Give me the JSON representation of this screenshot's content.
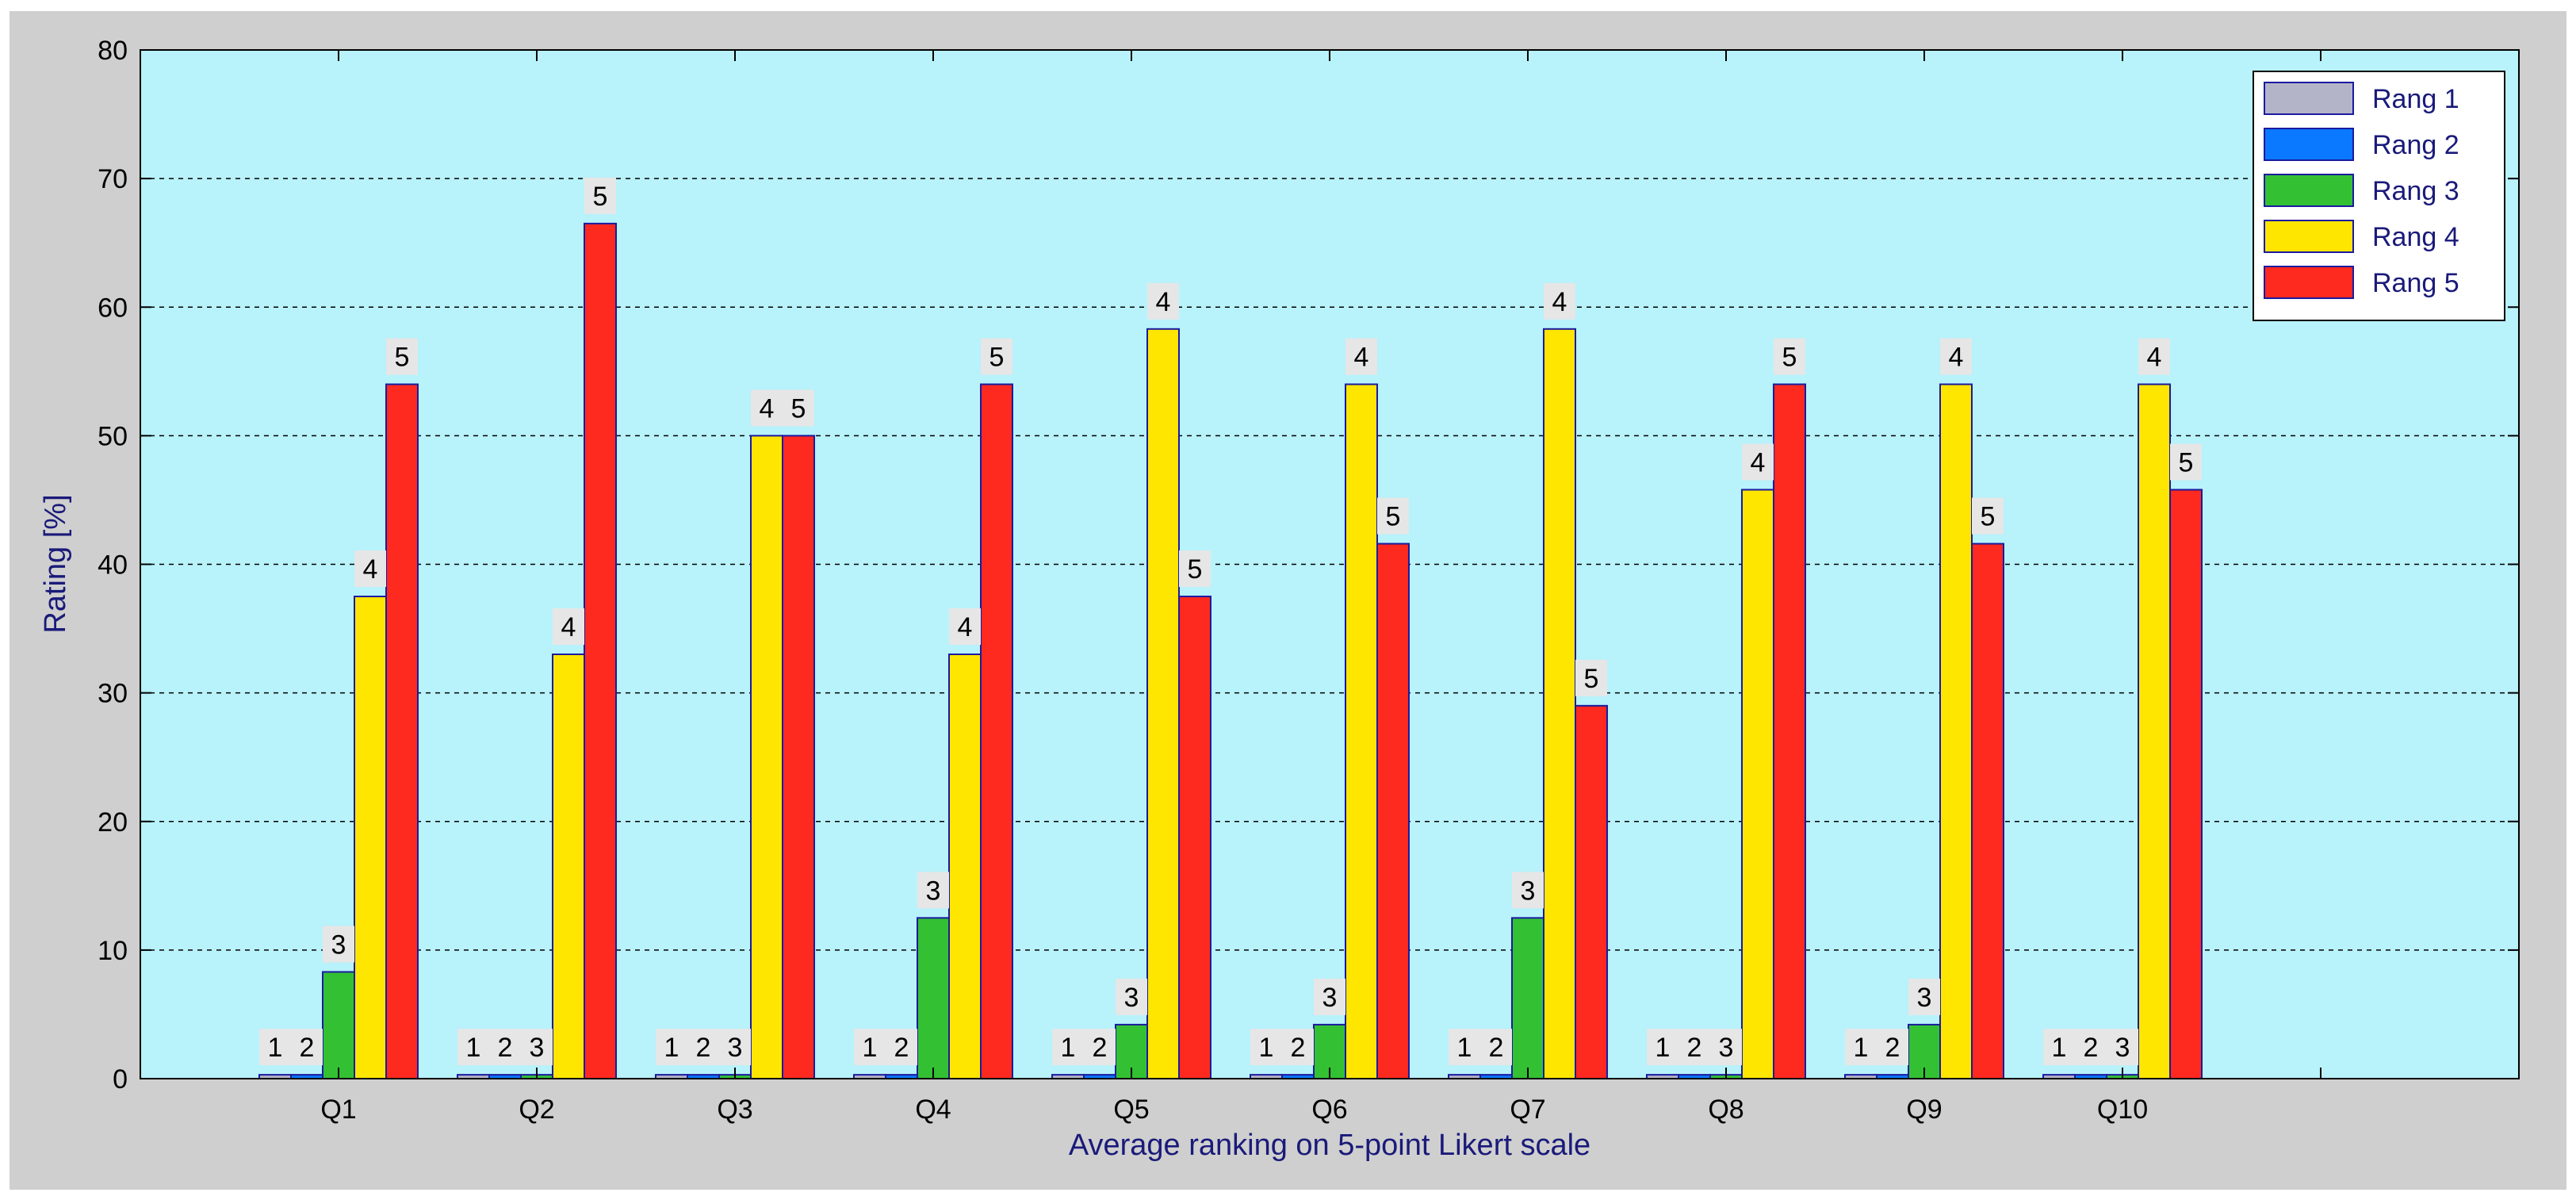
{
  "chart_data": {
    "type": "bar",
    "title": "",
    "xlabel": "Average ranking on 5-point Likert scale",
    "ylabel": "Rating [%]",
    "ylim": [
      0,
      80
    ],
    "yticks": [
      0,
      10,
      20,
      30,
      40,
      50,
      60,
      70,
      80
    ],
    "xlim": [
      0,
      12
    ],
    "grid": "y-dashed",
    "legend_position": "top-right",
    "background_color": "#b8f2fb",
    "figure_color": "#cfcfcf",
    "axis_text_color": "#1a1a7a",
    "categories": [
      "Q1",
      "Q2",
      "Q3",
      "Q4",
      "Q5",
      "Q6",
      "Q7",
      "Q8",
      "Q9",
      "Q10"
    ],
    "series": [
      {
        "name": "Rang 1",
        "color": "#b4b4c8",
        "values": [
          0.3,
          0.3,
          0.3,
          0.3,
          0.3,
          0.3,
          0.3,
          0.3,
          0.3,
          0.3
        ]
      },
      {
        "name": "Rang 2",
        "color": "#0a78ff",
        "values": [
          0.3,
          0.3,
          0.3,
          0.3,
          0.3,
          0.3,
          0.3,
          0.3,
          0.3,
          0.3
        ]
      },
      {
        "name": "Rang 3",
        "color": "#33c133",
        "values": [
          8.3,
          0.3,
          0.3,
          12.5,
          4.2,
          4.2,
          12.5,
          0.3,
          4.2,
          0.3
        ]
      },
      {
        "name": "Rang 4",
        "color": "#ffe600",
        "values": [
          37.5,
          33.0,
          50.0,
          33.0,
          58.3,
          54.0,
          58.3,
          45.8,
          54.0,
          54.0
        ]
      },
      {
        "name": "Rang 5",
        "color": "#ff2a1f",
        "values": [
          54.0,
          66.5,
          50.0,
          54.0,
          37.5,
          41.6,
          29.0,
          54.0,
          41.6,
          45.8
        ]
      }
    ],
    "bar_labels": [
      "1",
      "2",
      "3",
      "4",
      "5"
    ]
  }
}
